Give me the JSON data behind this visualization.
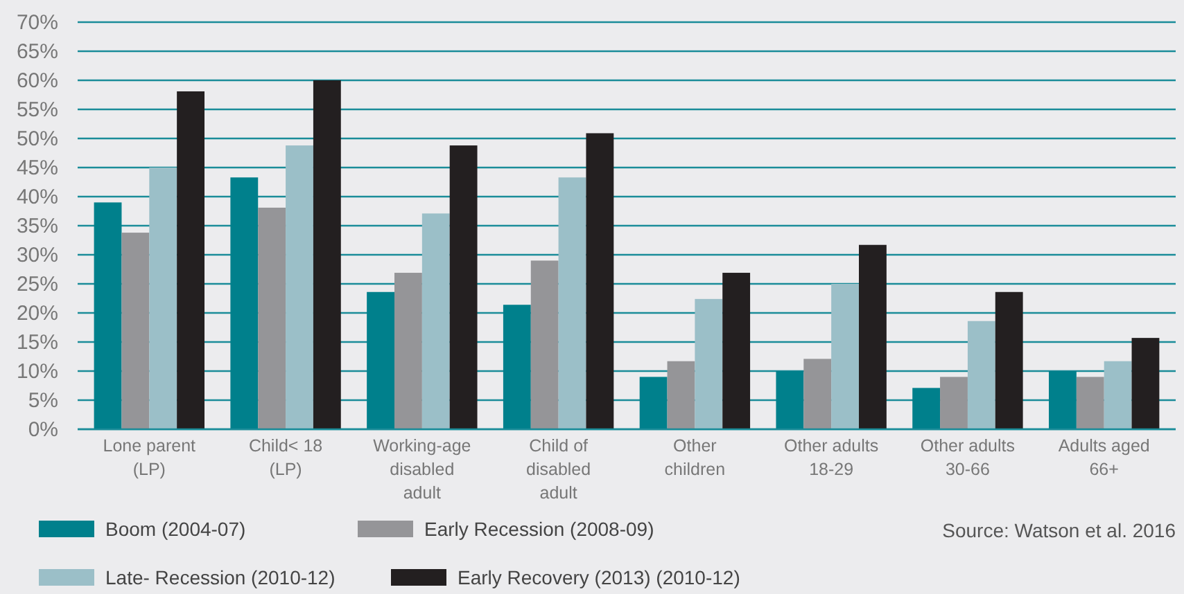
{
  "chart_data": {
    "type": "bar",
    "categories": [
      "Lone parent\n(LP)",
      "Child< 18\n(LP)",
      "Working-age\ndisabled\nadult",
      "Child of\ndisabled\nadult",
      "Other\nchildren",
      "Other adults\n18-29",
      "Other adults\n30-66",
      "Adults aged\n66+"
    ],
    "series": [
      {
        "name": "Boom (2004-07)",
        "color": "#00808c",
        "values": [
          39,
          43.3,
          23.6,
          21.4,
          9,
          10,
          7.1,
          10
        ]
      },
      {
        "name": "Early Recession (2008-09)",
        "color": "#959598",
        "values": [
          33.8,
          38.1,
          26.9,
          29,
          11.7,
          12.1,
          9,
          9
        ]
      },
      {
        "name": "Late- Recession (2010-12)",
        "color": "#9bbfc8",
        "values": [
          45,
          48.8,
          37.1,
          43.3,
          22.4,
          25,
          18.6,
          11.7
        ]
      },
      {
        "name": "Early Recovery (2013) (2010-12)",
        "color": "#231f20",
        "values": [
          58.1,
          60,
          48.8,
          50.9,
          26.9,
          31.7,
          23.6,
          15.7
        ]
      }
    ],
    "ylim": [
      0,
      70
    ],
    "yticks": [
      {
        "value": 0,
        "label": "0%"
      },
      {
        "value": 5,
        "label": "5%"
      },
      {
        "value": 10,
        "label": "10%"
      },
      {
        "value": 15,
        "label": "15%"
      },
      {
        "value": 20,
        "label": "20%"
      },
      {
        "value": 25,
        "label": "25%"
      },
      {
        "value": 30,
        "label": "30%"
      },
      {
        "value": 35,
        "label": "35%"
      },
      {
        "value": 40,
        "label": "40%"
      },
      {
        "value": 45,
        "label": "45%"
      },
      {
        "value": 50,
        "label": "50%"
      },
      {
        "value": 55,
        "label": "55%"
      },
      {
        "value": 60,
        "label": "60%"
      },
      {
        "value": 65,
        "label": "65%"
      },
      {
        "value": 70,
        "label": "70%"
      }
    ],
    "grid": "y",
    "legend": "bottom",
    "annotations": [
      "Source: Watson et al. 2016"
    ]
  }
}
